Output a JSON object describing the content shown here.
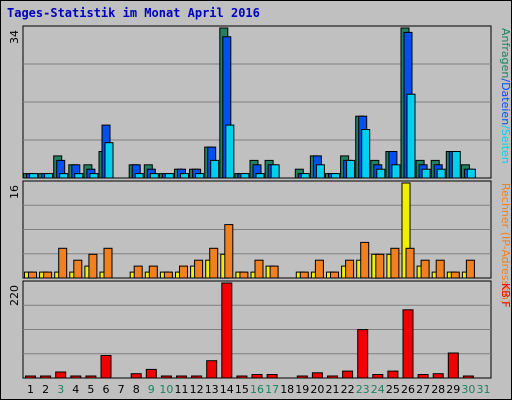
{
  "title": "Tages-Statistik im Monat April 2016",
  "colors": {
    "background": "#c0c0c0",
    "title": "#0000c0",
    "anfragen": "#208060",
    "dateien": "#0050f0",
    "seiten": "#00d0f0",
    "rechner": "#f08020",
    "besuche": "#f0f000",
    "kb": "#f00000",
    "weekday_label": "#000000",
    "weekend_label": "#208060"
  },
  "chart_data": {
    "type": "bar",
    "categories": [
      "1",
      "2",
      "3",
      "4",
      "5",
      "6",
      "7",
      "8",
      "9",
      "10",
      "11",
      "12",
      "13",
      "14",
      "15",
      "16",
      "17",
      "18",
      "19",
      "20",
      "21",
      "22",
      "23",
      "24",
      "25",
      "26",
      "27",
      "28",
      "29",
      "30",
      "31"
    ],
    "weekend_days": [
      "3",
      "9",
      "10",
      "16",
      "17",
      "23",
      "24",
      "30",
      "31"
    ],
    "panels": [
      {
        "id": "requests",
        "max_label": "34",
        "ylim": [
          0,
          34
        ],
        "legend": [
          {
            "text": "Anfragen",
            "color_key": "anfragen"
          },
          {
            "text": "/",
            "color_key": "dateien"
          },
          {
            "text": "Dateien",
            "color_key": "dateien"
          },
          {
            "text": "/",
            "color_key": "seiten"
          },
          {
            "text": "Seiten",
            "color_key": "seiten"
          }
        ],
        "series": [
          {
            "color_key": "anfragen",
            "values": [
              1,
              1,
              5,
              3,
              3,
              6,
              0,
              3,
              3,
              1,
              2,
              2,
              7,
              34,
              1,
              4,
              4,
              0,
              2,
              5,
              1,
              5,
              14,
              4,
              6,
              34,
              4,
              4,
              6,
              3,
              0
            ]
          },
          {
            "color_key": "dateien",
            "values": [
              1,
              1,
              4,
              3,
              2,
              12,
              0,
              3,
              2,
              1,
              2,
              2,
              7,
              32,
              1,
              3,
              3,
              0,
              1,
              5,
              1,
              4,
              14,
              3,
              6,
              33,
              3,
              3,
              6,
              2,
              0
            ]
          },
          {
            "color_key": "seiten",
            "values": [
              1,
              1,
              1,
              1,
              1,
              8,
              0,
              1,
              1,
              1,
              1,
              1,
              4,
              12,
              1,
              1,
              3,
              0,
              1,
              3,
              1,
              4,
              11,
              2,
              3,
              19,
              2,
              2,
              6,
              2,
              0
            ]
          }
        ]
      },
      {
        "id": "visits",
        "max_label": "16",
        "ylim": [
          0,
          16
        ],
        "legend": [
          {
            "text": "Rechner",
            "color_key": "rechner"
          },
          {
            "text": "(IP-Adressen)",
            "color_key": "rechner"
          }
        ],
        "series": [
          {
            "color_key": "besuche",
            "values": [
              1,
              1,
              1,
              1,
              2,
              1,
              0,
              1,
              1,
              1,
              1,
              2,
              3,
              4,
              1,
              1,
              2,
              0,
              1,
              1,
              1,
              2,
              3,
              4,
              4,
              16,
              2,
              1,
              1,
              1,
              0
            ]
          },
          {
            "color_key": "rechner",
            "values": [
              1,
              1,
              5,
              3,
              4,
              5,
              0,
              2,
              2,
              1,
              2,
              3,
              5,
              9,
              1,
              3,
              2,
              0,
              1,
              3,
              1,
              3,
              6,
              4,
              5,
              5,
              3,
              3,
              1,
              3,
              0
            ]
          }
        ]
      },
      {
        "id": "bytes",
        "max_label": "220",
        "ylim": [
          0,
          220
        ],
        "legend": [
          {
            "text": "KB",
            "color_key": "kb"
          },
          {
            "text": "F",
            "color_key": "kb"
          }
        ],
        "series": [
          {
            "color_key": "kb",
            "values": [
              2,
              2,
              14,
              2,
              2,
              52,
              0,
              10,
              20,
              2,
              2,
              2,
              40,
              220,
              2,
              8,
              8,
              0,
              2,
              12,
              2,
              16,
              112,
              8,
              16,
              158,
              8,
              10,
              58,
              2,
              0
            ]
          }
        ]
      }
    ]
  }
}
